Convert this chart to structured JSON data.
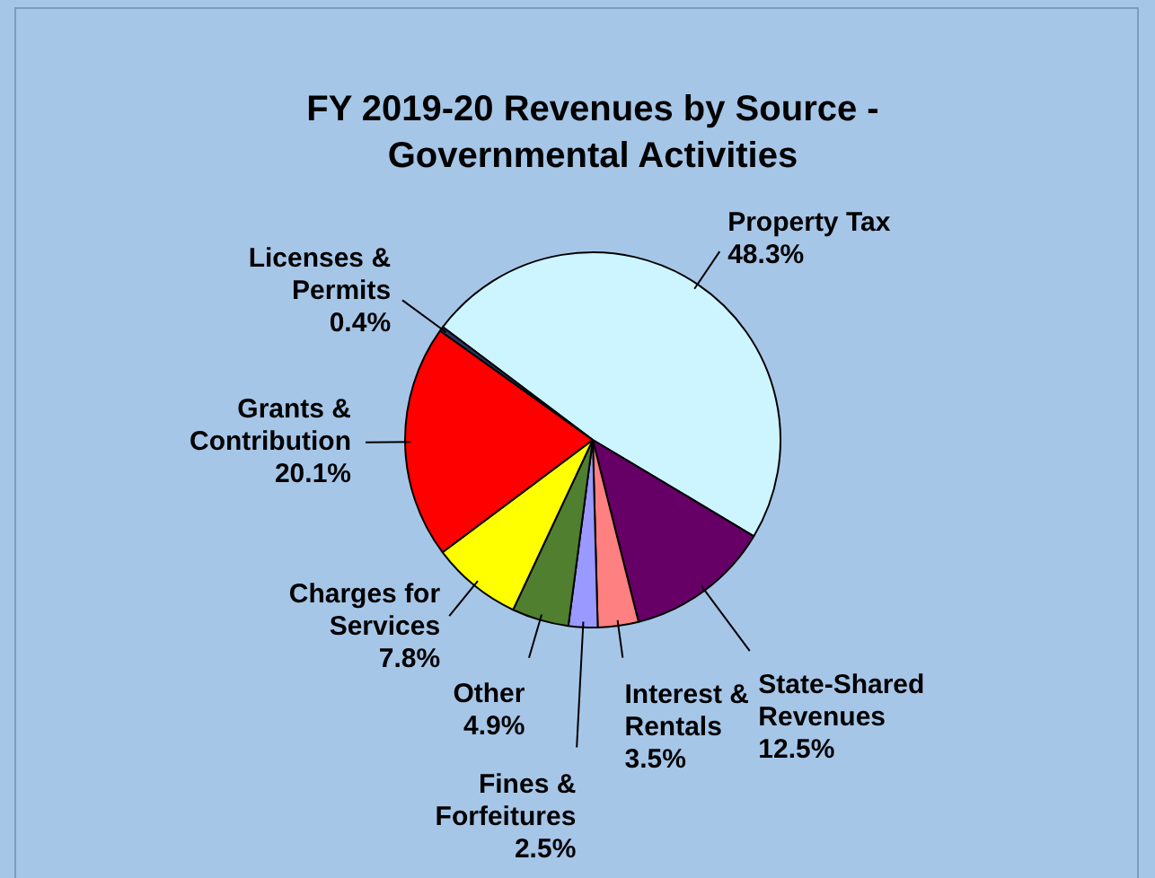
{
  "chart_data": {
    "type": "pie",
    "title": "FY 2019-20 Revenues by Source - Governmental Activities",
    "categories": [
      "Property Tax",
      "State-Shared Revenues",
      "Interest & Rentals",
      "Fines & Forfeitures",
      "Other",
      "Charges for Services",
      "Grants & Contribution",
      "Licenses & Permits"
    ],
    "values": [
      48.3,
      12.5,
      3.5,
      2.5,
      4.9,
      7.8,
      20.1,
      0.4
    ],
    "value_labels": [
      "48.3%",
      "12.5%",
      "3.5%",
      "2.5%",
      "4.9%",
      "7.8%",
      "20.1%",
      "0.4%"
    ],
    "colors": [
      "#ccf5ff",
      "#660066",
      "#ff8080",
      "#9999ff",
      "#4f7f2f",
      "#ffff00",
      "#ff0000",
      "#333366"
    ],
    "legend": false
  }
}
